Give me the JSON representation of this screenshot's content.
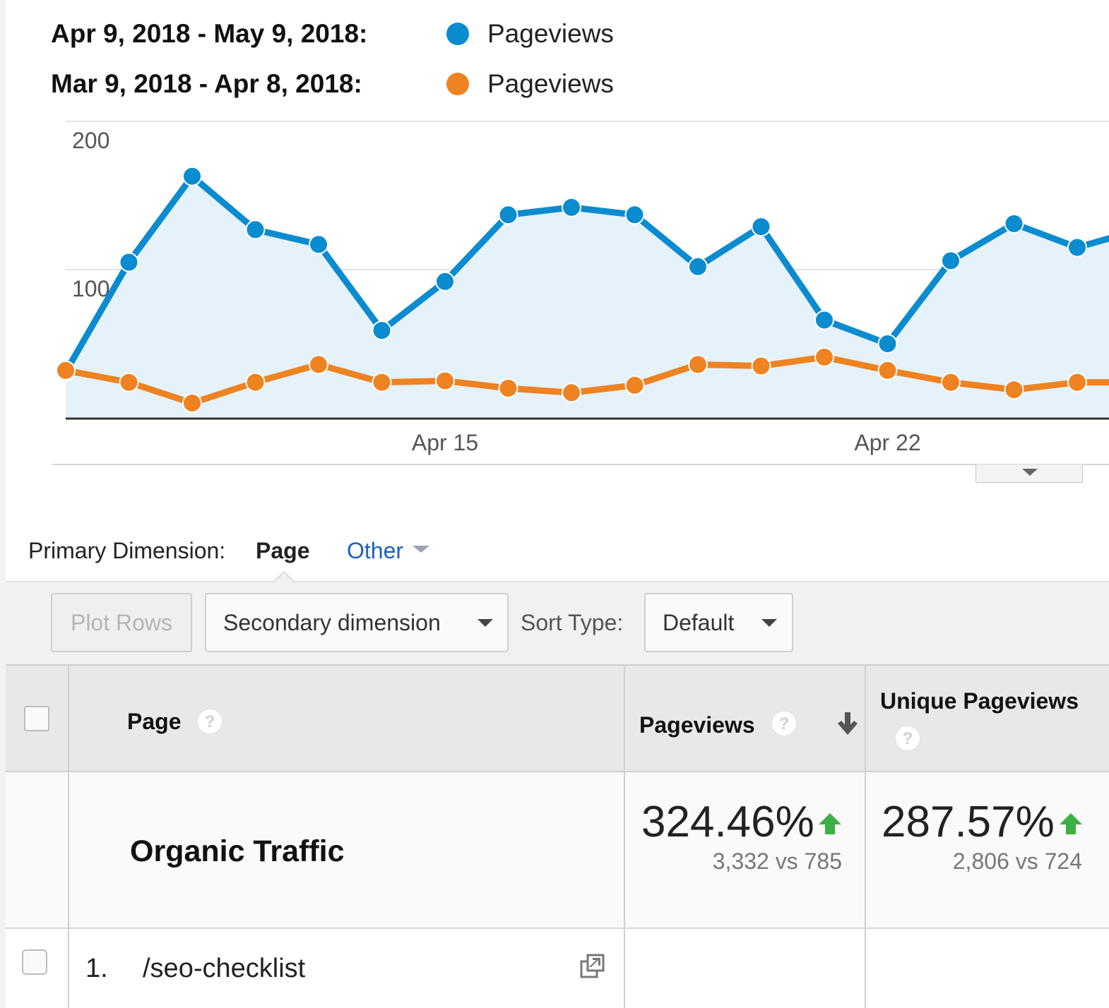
{
  "legend": [
    {
      "range": "Apr 9, 2018 - May 9, 2018:",
      "label": "Pageviews",
      "color": "#0b8bd0"
    },
    {
      "range": "Mar 9, 2018 - Apr 8, 2018:",
      "label": "Pageviews",
      "color": "#ef8221"
    }
  ],
  "chart_data": {
    "type": "line",
    "y_ticks": [
      "200",
      "100"
    ],
    "x_ticks": [
      "Apr 15",
      "Apr 22"
    ],
    "ylim": [
      0,
      200
    ],
    "grid": true,
    "series": [
      {
        "name": "Pageviews",
        "color": "#0b8bd0",
        "area": true,
        "values": [
          31,
          105,
          163,
          127,
          117,
          59,
          92,
          137,
          142,
          137,
          102,
          129,
          66,
          50,
          106,
          131,
          115,
          127
        ]
      },
      {
        "name": "Pageviews",
        "color": "#ef8221",
        "area": false,
        "values": [
          32,
          24,
          10,
          24,
          36,
          24,
          25,
          20,
          17,
          22,
          36,
          35,
          41,
          32,
          24,
          19,
          24,
          24
        ]
      }
    ]
  },
  "primary_dimension": {
    "label": "Primary Dimension:",
    "selected": "Page",
    "other": "Other"
  },
  "toolbar": {
    "plot_rows": "Plot Rows",
    "secondary_dimension": "Secondary dimension",
    "sort_type_label": "Sort Type:",
    "sort_type_value": "Default"
  },
  "table": {
    "headers": {
      "page": "Page",
      "pageviews": "Pageviews",
      "unique_pageviews": "Unique Pageviews",
      "help": "?"
    },
    "summary": {
      "label": "Organic Traffic",
      "pageviews_pct": "324.46%",
      "pageviews_cmp": "3,332 vs 785",
      "unique_pct": "287.57%",
      "unique_cmp": "2,806 vs 724"
    },
    "rows": [
      {
        "index": "1.",
        "page": "/seo-checklist"
      }
    ]
  }
}
